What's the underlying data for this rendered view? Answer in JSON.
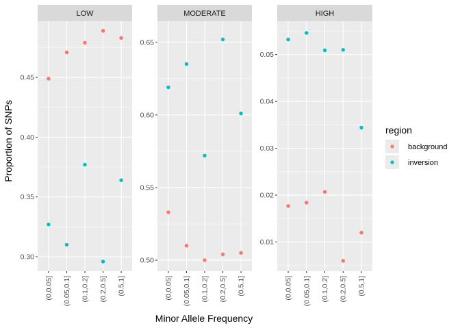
{
  "chart_data": {
    "type": "scatter",
    "xlabel": "Minor Allele Frequency",
    "ylabel": "Proportion of SNPs",
    "categories": [
      "(0,0.05]",
      "(0.05,0.1]",
      "(0.1,0.2]",
      "(0.2,0.5]",
      "(0.5,1]"
    ],
    "legend": {
      "title": "region",
      "placement": "right",
      "entries": [
        {
          "name": "background",
          "color": "#F8766D"
        },
        {
          "name": "inversion",
          "color": "#00BFC4"
        }
      ]
    },
    "panels": [
      {
        "title": "LOW",
        "yticks": [
          0.3,
          0.35,
          0.4,
          0.45
        ],
        "ytick_labels": [
          "0.30",
          "0.35",
          "0.40",
          "0.45"
        ],
        "ylim": [
          0.288,
          0.497
        ],
        "series": [
          {
            "name": "background",
            "values": [
              0.449,
              0.471,
              0.479,
              0.489,
              0.483
            ]
          },
          {
            "name": "inversion",
            "values": [
              0.327,
              0.31,
              0.377,
              0.296,
              0.364
            ]
          }
        ]
      },
      {
        "title": "MODERATE",
        "yticks": [
          0.5,
          0.55,
          0.6,
          0.65
        ],
        "ytick_labels": [
          "0.50",
          "0.55",
          "0.60",
          "0.65"
        ],
        "ylim": [
          0.4925,
          0.6645
        ],
        "series": [
          {
            "name": "background",
            "values": [
              0.533,
              0.51,
              0.5,
              0.504,
              0.505
            ]
          },
          {
            "name": "inversion",
            "values": [
              0.619,
              0.635,
              0.572,
              0.652,
              0.601
            ]
          }
        ]
      },
      {
        "title": "HIGH",
        "yticks": [
          0.01,
          0.02,
          0.03,
          0.04,
          0.05
        ],
        "ytick_labels": [
          "0.01",
          "0.02",
          "0.03",
          "0.04",
          "0.05"
        ],
        "ylim": [
          0.0038,
          0.0571
        ],
        "series": [
          {
            "name": "background",
            "values": [
              0.0177,
              0.0184,
              0.0207,
              0.006,
              0.012
            ]
          },
          {
            "name": "inversion",
            "values": [
              0.0532,
              0.0546,
              0.0509,
              0.051,
              0.0344
            ]
          }
        ]
      }
    ]
  }
}
